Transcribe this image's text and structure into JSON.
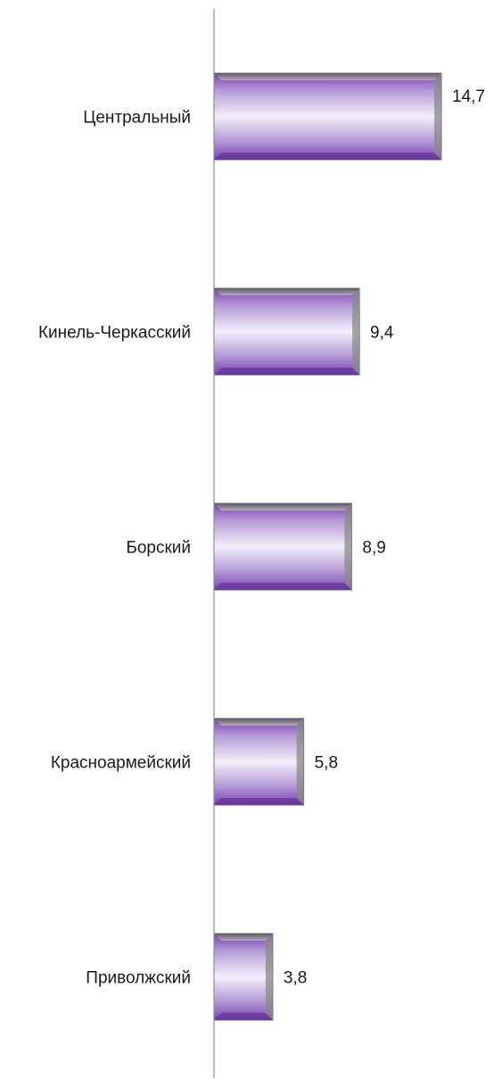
{
  "chart_data": {
    "type": "bar",
    "orientation": "horizontal",
    "categories": [
      "Центральный",
      "Кинель-Черкасский",
      "Борский",
      "Красноармейский",
      "Приволжский"
    ],
    "values": [
      14.7,
      9.4,
      8.9,
      5.8,
      3.8
    ],
    "value_labels": [
      "14,7",
      "9,4",
      "8,9",
      "5,8",
      "3,8"
    ],
    "title": "",
    "xlabel": "",
    "ylabel": "",
    "xlim": [
      0,
      15
    ],
    "grid": false,
    "legend": "none",
    "colors": {
      "bar_dark": "#7b3fb5",
      "bar_mid": "#b49ad6",
      "bar_light": "#f4effa",
      "bar_edge": "#6f6f6f",
      "axis": "#8c8c8c"
    }
  }
}
